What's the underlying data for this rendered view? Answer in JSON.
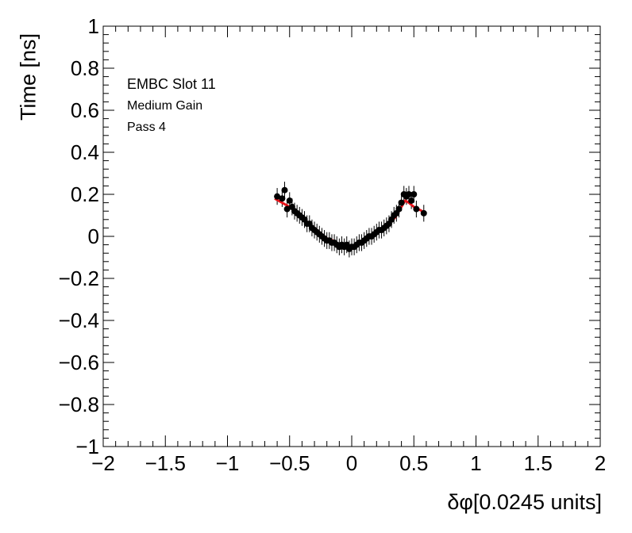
{
  "chart_data": {
    "type": "scatter",
    "xlabel": "δφ[0.0245 units]",
    "ylabel": "Time [ns]",
    "xlim": [
      -2,
      2
    ],
    "ylim": [
      -1,
      1
    ],
    "x_ticks": [
      "−2",
      "−1.5",
      "−1",
      "−0.5",
      "0",
      "0.5",
      "1",
      "1.5",
      "2"
    ],
    "y_ticks": [
      "−1",
      "−0.8",
      "−0.6",
      "−0.4",
      "−0.2",
      "0",
      "0.2",
      "0.4",
      "0.6",
      "0.8",
      "1"
    ],
    "annotations": [
      "EMBC Slot 11",
      "Medium Gain",
      "Pass 4"
    ],
    "grid": false,
    "points": {
      "x": [
        -0.6,
        -0.56,
        -0.54,
        -0.52,
        -0.5,
        -0.48,
        -0.46,
        -0.44,
        -0.42,
        -0.4,
        -0.38,
        -0.36,
        -0.34,
        -0.32,
        -0.3,
        -0.28,
        -0.26,
        -0.24,
        -0.22,
        -0.2,
        -0.18,
        -0.16,
        -0.14,
        -0.12,
        -0.1,
        -0.08,
        -0.06,
        -0.04,
        -0.02,
        0.0,
        0.02,
        0.04,
        0.06,
        0.08,
        0.1,
        0.12,
        0.14,
        0.16,
        0.18,
        0.2,
        0.22,
        0.24,
        0.26,
        0.28,
        0.3,
        0.32,
        0.34,
        0.36,
        0.38,
        0.4,
        0.42,
        0.44,
        0.46,
        0.48,
        0.5,
        0.52,
        0.58
      ],
      "y": [
        0.19,
        0.18,
        0.22,
        0.13,
        0.17,
        0.14,
        0.12,
        0.11,
        0.1,
        0.09,
        0.08,
        0.06,
        0.06,
        0.04,
        0.03,
        0.02,
        0.01,
        0.0,
        -0.01,
        -0.02,
        -0.02,
        -0.03,
        -0.03,
        -0.04,
        -0.05,
        -0.04,
        -0.05,
        -0.04,
        -0.06,
        -0.05,
        -0.05,
        -0.04,
        -0.03,
        -0.03,
        -0.02,
        -0.01,
        0.0,
        0.0,
        0.01,
        0.02,
        0.03,
        0.03,
        0.04,
        0.05,
        0.06,
        0.08,
        0.1,
        0.11,
        0.13,
        0.16,
        0.2,
        0.19,
        0.2,
        0.17,
        0.2,
        0.13,
        0.11
      ],
      "yerr": 0.04
    },
    "fit": {
      "color": "#e8141b",
      "x": [
        -0.62,
        -0.5,
        -0.4,
        -0.3,
        -0.2,
        -0.15,
        -0.1,
        -0.05,
        0.0,
        0.05,
        0.1,
        0.15,
        0.2,
        0.3,
        0.35,
        0.4,
        0.43,
        0.46,
        0.5,
        0.6
      ],
      "y": [
        0.18,
        0.14,
        0.09,
        0.04,
        -0.01,
        -0.02,
        -0.04,
        -0.05,
        -0.05,
        -0.04,
        -0.02,
        0.0,
        0.02,
        0.06,
        0.09,
        0.14,
        0.17,
        0.16,
        0.14,
        0.11
      ]
    }
  }
}
